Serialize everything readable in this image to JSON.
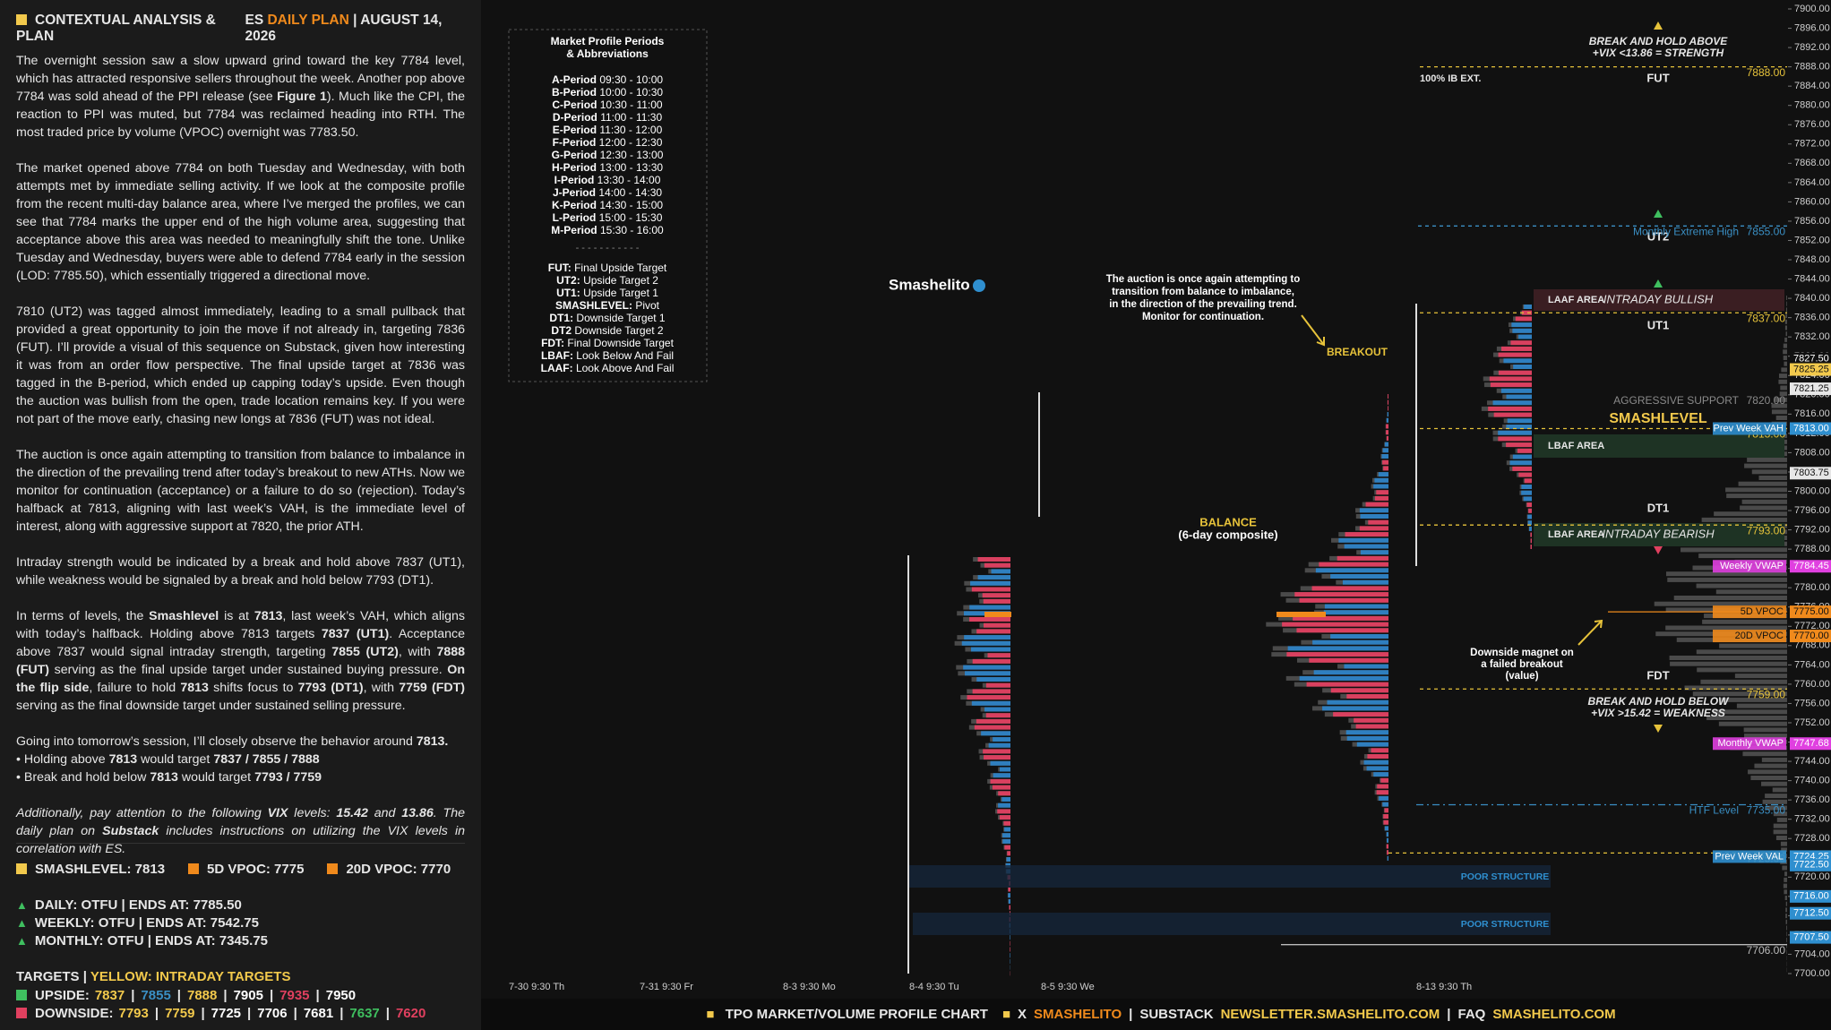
{
  "header": {
    "title": "CONTEXTUAL ANALYSIS & PLAN",
    "market": "ES",
    "plan": "DAILY PLAN",
    "sep": "|",
    "date": "AUGUST 14, 2026"
  },
  "paragraphs": [
    {
      "lines": [
        [
          "The overnight session saw a slow upward grind toward the key 7784 level, which has attracted responsive sellers throughout the week. Another pop above 7784 was sold ahead of the PPI release (see ",
          {
            "b": "Figure 1"
          },
          "). Much like the CPI, the reaction to PPI was muted, but 7784 was reclaimed heading into RTH. The most traded price by volume (VPOC) overnight was 7783.50."
        ]
      ]
    },
    {
      "lines": [
        [
          "The market opened above 7784 on both Tuesday and Wednesday, with both attempts met by immediate selling activity. If we look at the composite profile from the recent multi-day balance area, where I’ve merged the profiles, we can see that 7784 marks the upper end of the high volume area, suggesting that acceptance above this area was needed to meaningfully shift the tone. Unlike Tuesday and Wednesday, buyers were able to defend 7784 early in the session (LOD: 7785.50), which essentially triggered a directional move."
        ]
      ]
    },
    {
      "lines": [
        [
          "7810 (UT2) was tagged almost immediately, leading to a small pullback that provided a great opportunity to join the move if not already in, targeting 7836 (FUT). I’ll provide a visual of this sequence on Substack, given how interesting it was from an order flow perspective. The final upside target at 7836 was tagged in the B-period, which ended up capping today’s upside. Even though the auction was bullish from the open, trade location remains key. If you were not part of the move early, chasing new longs at 7836 (FUT) was not ideal."
        ]
      ]
    },
    {
      "lines": [
        [
          "The auction is once again attempting to transition from balance to imbalance in the direction of the prevailing trend after today’s breakout to new ATHs. Now we monitor for continuation (acceptance) or a failure to do so (rejection). Today’s halfback at 7813, aligning with last week’s VAH, is the immediate level of interest, along with aggressive support at 7820, the prior ATH."
        ]
      ]
    },
    {
      "lines": [
        [
          "Intraday strength would be indicated by a break and hold above 7837 (UT1), while weakness would be signaled by a break and hold below 7793 (DT1)."
        ]
      ]
    },
    {
      "lines": [
        [
          "In terms of levels, the ",
          {
            "b": "Smashlevel"
          },
          " is at ",
          {
            "b": "7813"
          },
          ", last week’s VAH, which aligns with today’s halfback. Holding above 7813 targets ",
          {
            "b": "7837 (UT1)"
          },
          ". Acceptance above 7837 would signal intraday strength, targeting ",
          {
            "b": "7855 (UT2)"
          },
          ", with ",
          {
            "b": "7888 (FUT)"
          },
          " serving as the final upside target under sustained buying pressure. ",
          {
            "b": "On the flip side"
          },
          ", failure to hold ",
          {
            "b": "7813"
          },
          " shifts focus to ",
          {
            "b": "7793 (DT1)"
          },
          ", with ",
          {
            "b": "7759 (FDT)"
          },
          " serving as the final downside target under sustained selling pressure."
        ]
      ]
    },
    {
      "lines": [
        [
          "Going into tomorrow’s session, I’ll closely observe the behavior around ",
          {
            "b": "7813."
          }
        ],
        [
          "• Holding above ",
          {
            "b": "7813"
          },
          " would target ",
          {
            "b": "7837 / 7855 / 7888"
          }
        ],
        [
          "• Break and hold below ",
          {
            "b": "7813"
          },
          " would target ",
          {
            "b": "7793 / 7759"
          }
        ]
      ]
    },
    {
      "italic": true,
      "lines": [
        [
          "Additionally, pay attention to the following ",
          {
            "b": "VIX"
          },
          " levels: ",
          {
            "b": "15.42"
          },
          " and ",
          {
            "b": "13.86"
          },
          ". The daily plan on ",
          {
            "b": "Substack"
          },
          " includes instructions on utilizing the VIX levels in correlation with ES."
        ]
      ]
    }
  ],
  "key_levels": [
    {
      "text": "SMASHLEVEL: 7813",
      "color": "#f2c94c"
    },
    {
      "text": "5D VPOC: 7775",
      "color": "#f08a1c"
    },
    {
      "text": "20D VPOC: 7770",
      "color": "#f08a1c"
    }
  ],
  "trends": [
    "DAILY: OTFU  |  ENDS AT: 7785.50",
    "WEEKLY: OTFU  |  ENDS AT: 7542.75",
    "MONTHLY: OTFU  |  ENDS AT: 7345.75"
  ],
  "targets": {
    "title": "TARGETS",
    "note": "YELLOW: INTRADAY TARGETS",
    "rows": [
      {
        "label": "UPSIDE:",
        "color": "#3fbf5f",
        "values": [
          {
            "text": "7837",
            "color": "#f2c94c"
          },
          {
            "text": "7855",
            "color": "#3a8fc4"
          },
          {
            "text": "7888",
            "color": "#f2c94c"
          },
          {
            "text": "7905",
            "color": "#ffffff"
          },
          {
            "text": "7935",
            "color": "#e0405f"
          },
          {
            "text": "7950",
            "color": "#ffffff"
          }
        ]
      },
      {
        "label": "DOWNSIDE:",
        "color": "#e0405f",
        "values": [
          {
            "text": "7793",
            "color": "#f2c94c"
          },
          {
            "text": "7759",
            "color": "#f2c94c"
          },
          {
            "text": "7725",
            "color": "#ffffff"
          },
          {
            "text": "7706",
            "color": "#ffffff"
          },
          {
            "text": "7681",
            "color": "#ffffff"
          },
          {
            "text": "7637",
            "color": "#3fbf5f"
          },
          {
            "text": "7620",
            "color": "#e0405f"
          }
        ]
      }
    ]
  },
  "legend_box": {
    "title": [
      "Market Profile Periods",
      "& Abbreviations"
    ],
    "periods": [
      {
        "k": "A-Period",
        "t": "09:30 - 10:00"
      },
      {
        "k": "B-Period",
        "t": "10:00 - 10:30"
      },
      {
        "k": "C-Period",
        "t": "10:30 - 11:00"
      },
      {
        "k": "D-Period",
        "t": "11:00 - 11:30"
      },
      {
        "k": "E-Period",
        "t": "11:30 - 12:00"
      },
      {
        "k": "F-Period",
        "t": "12:00 - 12:30"
      },
      {
        "k": "G-Period",
        "t": "12:30 - 13:00"
      },
      {
        "k": "H-Period",
        "t": "13:00 - 13:30"
      },
      {
        "k": "I-Period",
        "t": "13:30 - 14:00"
      },
      {
        "k": "J-Period",
        "t": "14:00 - 14:30"
      },
      {
        "k": "K-Period",
        "t": "14:30 - 15:00"
      },
      {
        "k": "L-Period",
        "t": "15:00 - 15:30"
      },
      {
        "k": "M-Period",
        "t": "15:30 - 16:00"
      }
    ],
    "divider": "- - - - - - - - - - -",
    "abbreviations": [
      {
        "k": "FUT:",
        "t": "Final Upside Target"
      },
      {
        "k": "UT2:",
        "t": "Upside Target 2"
      },
      {
        "k": "UT1:",
        "t": "Upside Target 1"
      },
      {
        "k": "SMASHLEVEL:",
        "t": "Pivot"
      },
      {
        "k": "DT1:",
        "t": "Downside Target 1"
      },
      {
        "k": "DT2",
        "t": "Downside Target 2"
      },
      {
        "k": "FDT:",
        "t": "Final Downside Target"
      },
      {
        "k": "LBAF:",
        "t": "Look Below And Fail"
      },
      {
        "k": "LAAF:",
        "t": "Look Above And Fail"
      }
    ]
  },
  "chart": {
    "brand": "Smashelito",
    "note": [
      "The auction is once again attempting to",
      "transition from balance to imbalance,",
      "in the direction of the prevailing trend.",
      "Monitor for continuation."
    ],
    "breakout": "BREAKOUT",
    "balance": [
      "BALANCE",
      "(6-day composite)"
    ],
    "magnet": [
      "Downside magnet on",
      "a failed breakout",
      "(value)"
    ],
    "strength": [
      "BREAK AND HOLD ABOVE",
      "+VIX <13.86 = STRENGTH"
    ],
    "weakness": [
      "BREAK AND HOLD BELOW",
      "+VIX >15.42 = WEAKNESS"
    ],
    "ib_ext": "100% IB EXT.",
    "zones": {
      "fut": "FUT",
      "ut2": "UT2",
      "ut1": "UT1",
      "smashlevel": "SMASHLEVEL",
      "dt1": "DT1",
      "fdt": "FDT",
      "laaf": "LAAF AREA",
      "bullish": "INTRADAY BULLISH",
      "lbaf_top": "LBAF AREA",
      "lbaf_bottom": "LBAF AREA",
      "bearish": "INTRADAY BEARISH",
      "poor_1": "POOR STRUCTURE",
      "poor_2": "POOR STRUCTURE"
    },
    "x_labels": [
      "7-30  9:30 Th",
      "7-31  9:30 Fr",
      "8-3  9:30 Mo",
      "8-4  9:30 Tu",
      "8-5  9:30 We",
      "8-13  9:30 Th"
    ],
    "ylim": [
      7700,
      7900
    ],
    "yticks": [
      {
        "value": 7700,
        "label": "7700.00"
      },
      {
        "value": 7704,
        "label": "7704.00"
      },
      {
        "value": 7708,
        "label": "7708.00"
      },
      {
        "value": 7712,
        "label": "7712.00"
      },
      {
        "value": 7716,
        "label": "7716.00"
      },
      {
        "value": 7720,
        "label": "7720.00"
      },
      {
        "value": 7724,
        "label": "7724.00"
      },
      {
        "value": 7728,
        "label": "7728.00"
      },
      {
        "value": 7732,
        "label": "7732.00"
      },
      {
        "value": 7736,
        "label": "7736.00"
      },
      {
        "value": 7740,
        "label": "7740.00"
      },
      {
        "value": 7744,
        "label": "7744.00"
      },
      {
        "value": 7748,
        "label": "7748.00"
      },
      {
        "value": 7752,
        "label": "7752.00"
      },
      {
        "value": 7756,
        "label": "7756.00"
      },
      {
        "value": 7760,
        "label": "7760.00"
      },
      {
        "value": 7764,
        "label": "7764.00"
      },
      {
        "value": 7768,
        "label": "7768.00"
      },
      {
        "value": 7772,
        "label": "7772.00"
      },
      {
        "value": 7776,
        "label": "7776.00"
      },
      {
        "value": 7780,
        "label": "7780.00"
      },
      {
        "value": 7784,
        "label": "7784.00"
      },
      {
        "value": 7788,
        "label": "7788.00"
      },
      {
        "value": 7792,
        "label": "7792.00"
      },
      {
        "value": 7796,
        "label": "7796.00"
      },
      {
        "value": 7800,
        "label": "7800.00"
      },
      {
        "value": 7804,
        "label": "7804.00"
      },
      {
        "value": 7808,
        "label": "7808.00"
      },
      {
        "value": 7812,
        "label": "7812.00"
      },
      {
        "value": 7816,
        "label": "7816.00"
      },
      {
        "value": 7820,
        "label": "7820.00"
      },
      {
        "value": 7824,
        "label": "7824.00"
      },
      {
        "value": 7828,
        "label": "7828.00"
      },
      {
        "value": 7832,
        "label": "7832.00"
      },
      {
        "value": 7836,
        "label": "7836.00"
      },
      {
        "value": 7840,
        "label": "7840.00"
      },
      {
        "value": 7844,
        "label": "7844.00"
      },
      {
        "value": 7848,
        "label": "7848.00"
      },
      {
        "value": 7852,
        "label": "7852.00"
      },
      {
        "value": 7856,
        "label": "7856.00"
      },
      {
        "value": 7860,
        "label": "7860.00"
      },
      {
        "value": 7864,
        "label": "7864.00"
      },
      {
        "value": 7868,
        "label": "7868.00"
      },
      {
        "value": 7872,
        "label": "7872.00"
      },
      {
        "value": 7876,
        "label": "7876.00"
      },
      {
        "value": 7880,
        "label": "7880.00"
      },
      {
        "value": 7884,
        "label": "7884.00"
      },
      {
        "value": 7888,
        "label": "7888.00"
      },
      {
        "value": 7892,
        "label": "7892.00"
      },
      {
        "value": 7896,
        "label": "7896.00"
      },
      {
        "value": 7900,
        "label": "7900.00"
      }
    ],
    "levels": [
      {
        "value": 7888,
        "label": "7888.00",
        "color": "#e6c23a",
        "style": "dash"
      },
      {
        "value": 7855,
        "label": "7855.00",
        "name": "Monthly Extreme High",
        "color": "#3a8fc4",
        "style": "dash"
      },
      {
        "value": 7837,
        "label": "7837.00",
        "color": "#e6c23a",
        "style": "dash"
      },
      {
        "value": 7820,
        "label": "7820.00",
        "name": "AGGRESSIVE SUPPORT",
        "color": "#8a8a8a",
        "style": "none"
      },
      {
        "value": 7813,
        "label": "7813.00",
        "color": "#e6c23a",
        "style": "dash"
      },
      {
        "value": 7793,
        "label": "7793.00",
        "color": "#e6c23a",
        "style": "dash"
      },
      {
        "value": 7775,
        "color": "#f08a1c",
        "style": "solid"
      },
      {
        "value": 7759,
        "label": "7759.00",
        "color": "#e6c23a",
        "style": "dash"
      },
      {
        "value": 7735,
        "label": "7735.00",
        "name": "HTF Level",
        "color": "#3a8fc4",
        "style": "dashdot"
      },
      {
        "value": 7725,
        "label": "7725.00",
        "color": "#e6c23a",
        "style": "dash"
      },
      {
        "value": 7706,
        "label": "7706.00",
        "color": "#bbbbbb",
        "style": "solid"
      }
    ],
    "tags": [
      {
        "value": 7827.5,
        "label": "7827.50",
        "color": "#111111"
      },
      {
        "value": 7825.25,
        "label": "7825.25",
        "color": "#f2c94c"
      },
      {
        "value": 7821.25,
        "label": "7821.25",
        "color": "#e6e6e6"
      },
      {
        "value": 7813,
        "label": "7813.00",
        "name": "Prev Week VAH",
        "color": "#2f8fcf"
      },
      {
        "value": 7803.75,
        "label": "7803.75",
        "color": "#e6e6e6"
      },
      {
        "value": 7784.45,
        "label": "7784.45",
        "name": "Weekly VWAP",
        "color": "#e040e0"
      },
      {
        "value": 7775,
        "label": "7775.00",
        "name": "5D VPOC",
        "color": "#f08a1c"
      },
      {
        "value": 7770,
        "label": "7770.00",
        "name": "20D VPOC",
        "color": "#f08a1c"
      },
      {
        "value": 7747.68,
        "label": "7747.68",
        "name": "Monthly VWAP",
        "color": "#e040e0"
      },
      {
        "value": 7724.25,
        "label": "7724.25",
        "name": "Prev Week VAL",
        "color": "#2f8fcf"
      },
      {
        "value": 7722.5,
        "label": "7722.50",
        "color": "#2f8fcf"
      },
      {
        "value": 7716,
        "label": "7716.00",
        "color": "#2f8fcf"
      },
      {
        "value": 7712.5,
        "label": "7712.50",
        "color": "#2f8fcf"
      },
      {
        "value": 7707.5,
        "label": "7707.50",
        "color": "#2f8fcf"
      }
    ]
  },
  "footer": {
    "sep": "|",
    "chart": "TPO MARKET/VOLUME PROFILE CHART",
    "x": "X",
    "handle": "SMASHELITO",
    "substack": "SUBSTACK",
    "newsletter": "NEWSLETTER.SMASHELITO.COM",
    "faq": "FAQ",
    "site": "SMASHELITO.COM"
  }
}
